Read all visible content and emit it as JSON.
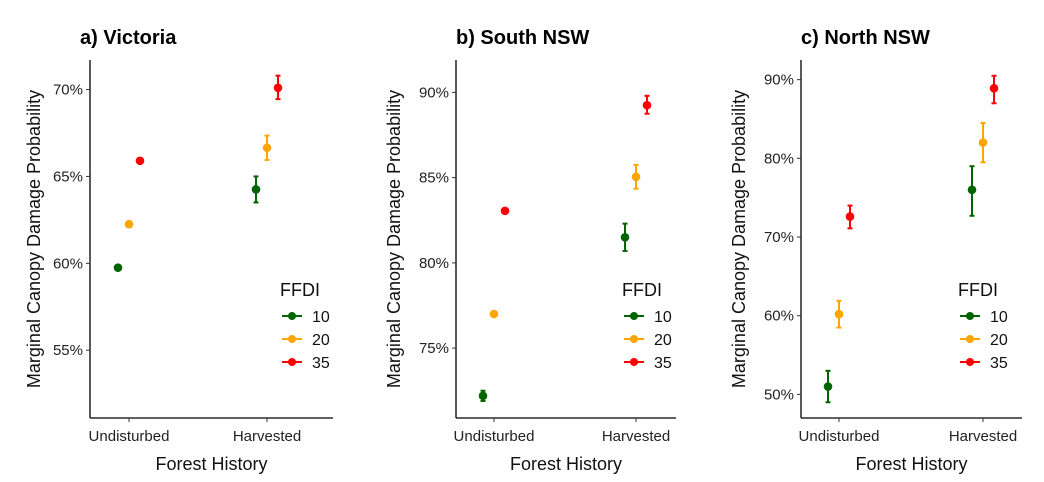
{
  "chart_data": [
    {
      "type": "scatter",
      "title": "a) Victoria",
      "xlabel": "Forest History",
      "ylabel": "Marginal Canopy Damage Probability",
      "categories": [
        "Undisturbed",
        "Harvested"
      ],
      "yticks": [
        55,
        60,
        65,
        70
      ],
      "ytick_labels": [
        "55%",
        "60%",
        "65%",
        "70%"
      ],
      "ylim": [
        51.1,
        71.7
      ],
      "legend": {
        "title": "FFDI",
        "placement": "right"
      },
      "series": [
        {
          "name": "10",
          "color": "#006400",
          "values": [
            59.75,
            64.25
          ],
          "lower": [
            59.65,
            63.5
          ],
          "upper": [
            59.85,
            65.0
          ]
        },
        {
          "name": "20",
          "color": "#FFA500",
          "values": [
            62.25,
            66.65
          ],
          "lower": [
            62.15,
            65.95
          ],
          "upper": [
            62.35,
            67.35
          ]
        },
        {
          "name": "35",
          "color": "#FF0000",
          "values": [
            65.9,
            70.1
          ],
          "lower": [
            65.8,
            69.45
          ],
          "upper": [
            66.0,
            70.8
          ]
        }
      ]
    },
    {
      "type": "scatter",
      "title": "b) South NSW",
      "xlabel": "Forest History",
      "ylabel": "Marginal Canopy Damage Probability",
      "categories": [
        "Undisturbed",
        "Harvested"
      ],
      "yticks": [
        75,
        80,
        85,
        90
      ],
      "ytick_labels": [
        "75%",
        "80%",
        "85%",
        "90%"
      ],
      "ylim": [
        70.9,
        91.9
      ],
      "legend": {
        "title": "FFDI",
        "placement": "right"
      },
      "series": [
        {
          "name": "10",
          "color": "#006400",
          "values": [
            72.2,
            81.5
          ],
          "lower": [
            71.9,
            80.7
          ],
          "upper": [
            72.5,
            82.3
          ]
        },
        {
          "name": "20",
          "color": "#FFA500",
          "values": [
            77.0,
            85.05
          ],
          "lower": [
            76.85,
            84.35
          ],
          "upper": [
            77.15,
            85.75
          ]
        },
        {
          "name": "35",
          "color": "#FF0000",
          "values": [
            83.05,
            89.25
          ],
          "lower": [
            82.9,
            88.75
          ],
          "upper": [
            83.2,
            89.8
          ]
        }
      ]
    },
    {
      "type": "scatter",
      "title": "c) North NSW",
      "xlabel": "Forest History",
      "ylabel": "Marginal Canopy Damage Probability",
      "categories": [
        "Undisturbed",
        "Harvested"
      ],
      "yticks": [
        50,
        60,
        70,
        80,
        90
      ],
      "ytick_labels": [
        "50%",
        "60%",
        "70%",
        "80%",
        "90%"
      ],
      "ylim": [
        47,
        92.5
      ],
      "legend": {
        "title": "FFDI",
        "placement": "right"
      },
      "series": [
        {
          "name": "10",
          "color": "#006400",
          "values": [
            51.0,
            76.0
          ],
          "lower": [
            49.0,
            72.7
          ],
          "upper": [
            53.0,
            79.0
          ]
        },
        {
          "name": "20",
          "color": "#FFA500",
          "values": [
            60.2,
            82.0
          ],
          "lower": [
            58.5,
            79.5
          ],
          "upper": [
            61.9,
            84.5
          ]
        },
        {
          "name": "35",
          "color": "#FF0000",
          "values": [
            72.6,
            88.9
          ],
          "lower": [
            71.1,
            87.0
          ],
          "upper": [
            74.0,
            90.5
          ]
        }
      ]
    }
  ]
}
